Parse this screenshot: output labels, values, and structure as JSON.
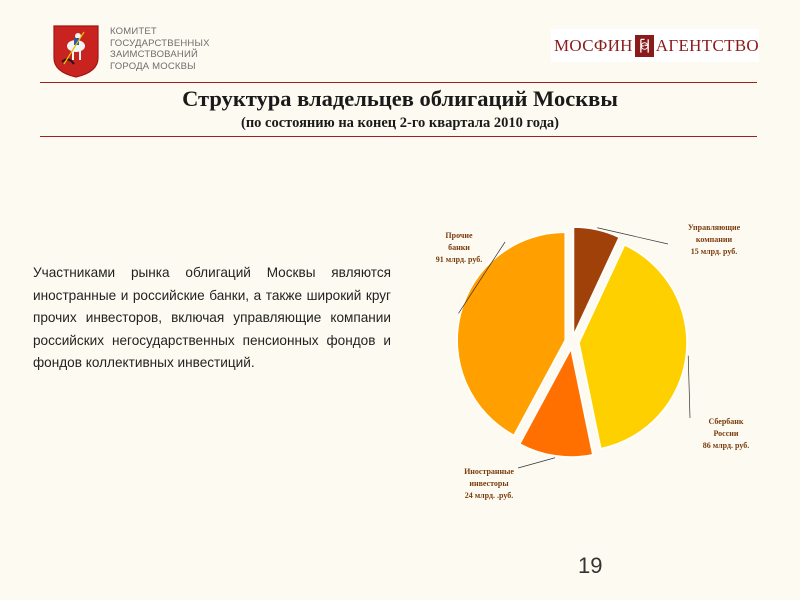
{
  "header": {
    "committee_lines": [
      "КОМИТЕТ",
      "ГОСУДАРСТВЕННЫХ",
      "ЗАИМСТВОВАНИЙ",
      "ГОРОДА МОСКВЫ"
    ],
    "agency_left": "МОСФИН",
    "agency_right": "АГЕНТСТВО"
  },
  "slide": {
    "title": "Структура владельцев облигаций Москвы",
    "subtitle": "(по состоянию на конец 2-го квартала 2010 года)",
    "body": "Участниками рынка облигаций Москвы являются иностранные и российские банки, а также широкий круг прочих инвесторов, включая управляющие компании российских негосударственных пенсионных фондов и фондов коллективных инвестиций.",
    "page_number": "19"
  },
  "colors": {
    "accent_red": "#a41e1e",
    "brand_dark_red": "#8b1a1a",
    "label_brown": "#7a3c0f"
  },
  "chart_data": {
    "type": "pie",
    "unit": "млрд. руб.",
    "exploded": true,
    "start_angle_deg": 0,
    "direction": "clockwise",
    "slices": [
      {
        "name": "Управляющие компании",
        "value": 15,
        "label_lines": [
          "Управляющие",
          "компании",
          "15 млрд. руб."
        ],
        "color": "#a0410a"
      },
      {
        "name": "Сбербанк России",
        "value": 86,
        "label_lines": [
          "Сбербанк",
          "России",
          "86 млрд. руб."
        ],
        "color": "#ffd000"
      },
      {
        "name": "Иностранные инвесторы",
        "value": 24,
        "label_lines": [
          "Иностранные",
          "инвесторы",
          "24 млрд. .руб."
        ],
        "color": "#ff7000"
      },
      {
        "name": "Прочие банки",
        "value": 91,
        "label_lines": [
          "Прочие",
          "банки",
          "91 млрд. руб."
        ],
        "color": "#ffa000"
      }
    ]
  }
}
